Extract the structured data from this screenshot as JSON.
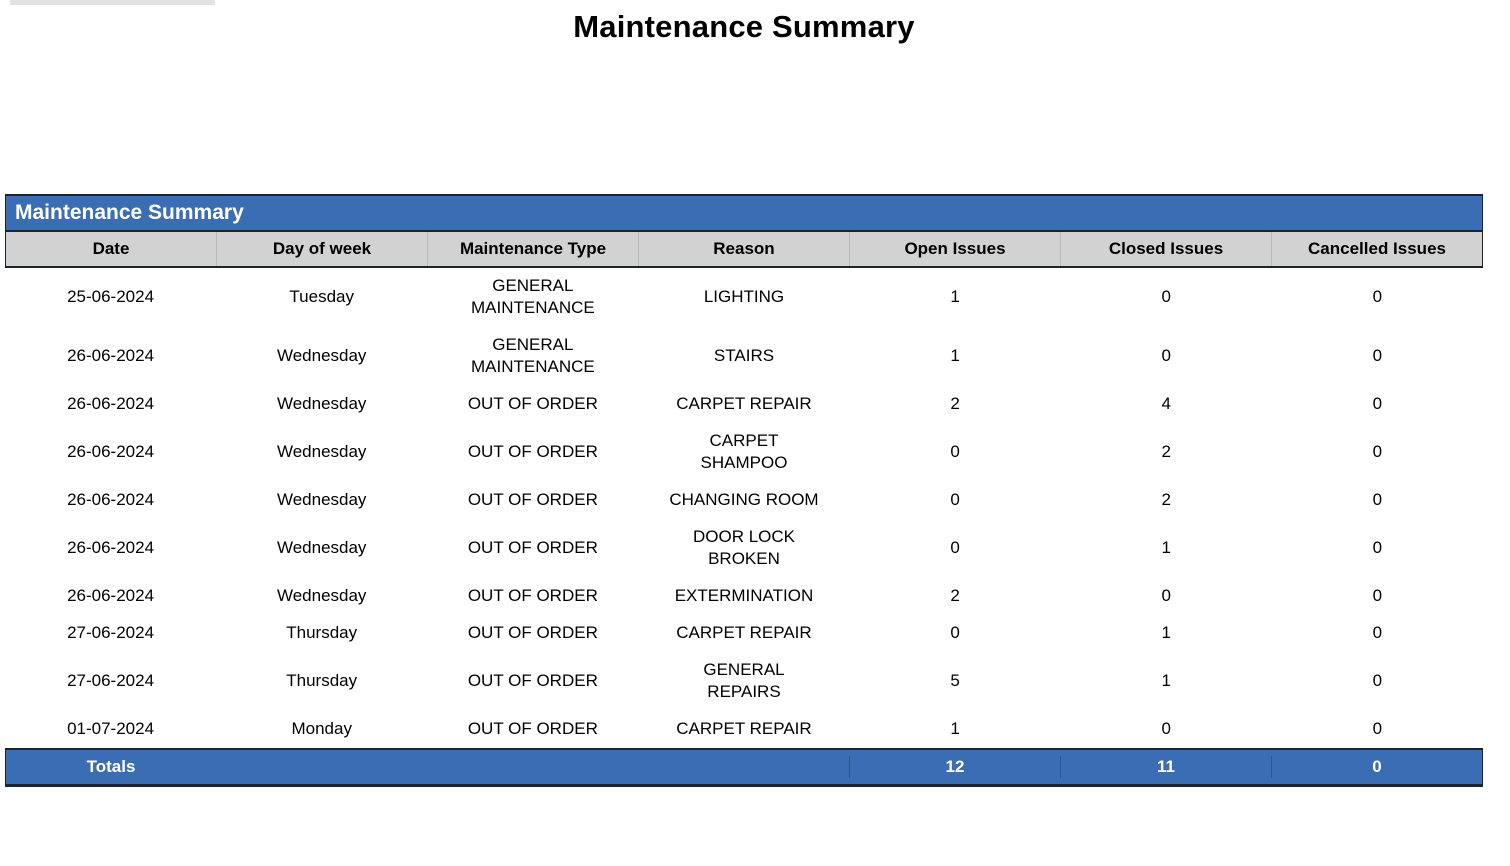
{
  "page": {
    "title": "Maintenance Summary"
  },
  "colors": {
    "accent_blue": "#3a6db4",
    "header_gray": "#d2d2d2",
    "border_dark": "#1c2430",
    "top_strip_gray": "#e2e2e2"
  },
  "table": {
    "title": "Maintenance Summary",
    "columns": [
      "Date",
      "Day of week",
      "Maintenance Type",
      "Reason",
      "Open Issues",
      "Closed Issues",
      "Cancelled Issues"
    ],
    "rows": [
      {
        "date": "25-06-2024",
        "day": "Tuesday",
        "type": "GENERAL\nMAINTENANCE",
        "reason": "LIGHTING",
        "open": "1",
        "closed": "0",
        "cancelled": "0"
      },
      {
        "date": "26-06-2024",
        "day": "Wednesday",
        "type": "GENERAL\nMAINTENANCE",
        "reason": "STAIRS",
        "open": "1",
        "closed": "0",
        "cancelled": "0"
      },
      {
        "date": "26-06-2024",
        "day": "Wednesday",
        "type": "OUT OF ORDER",
        "reason": "CARPET REPAIR",
        "open": "2",
        "closed": "4",
        "cancelled": "0"
      },
      {
        "date": "26-06-2024",
        "day": "Wednesday",
        "type": "OUT OF ORDER",
        "reason": "CARPET\nSHAMPOO",
        "open": "0",
        "closed": "2",
        "cancelled": "0"
      },
      {
        "date": "26-06-2024",
        "day": "Wednesday",
        "type": "OUT OF ORDER",
        "reason": "CHANGING ROOM",
        "open": "0",
        "closed": "2",
        "cancelled": "0"
      },
      {
        "date": "26-06-2024",
        "day": "Wednesday",
        "type": "OUT OF ORDER",
        "reason": "DOOR LOCK\nBROKEN",
        "open": "0",
        "closed": "1",
        "cancelled": "0"
      },
      {
        "date": "26-06-2024",
        "day": "Wednesday",
        "type": "OUT OF ORDER",
        "reason": "EXTERMINATION",
        "open": "2",
        "closed": "0",
        "cancelled": "0"
      },
      {
        "date": "27-06-2024",
        "day": "Thursday",
        "type": "OUT OF ORDER",
        "reason": "CARPET REPAIR",
        "open": "0",
        "closed": "1",
        "cancelled": "0"
      },
      {
        "date": "27-06-2024",
        "day": "Thursday",
        "type": "OUT OF ORDER",
        "reason": "GENERAL\nREPAIRS",
        "open": "5",
        "closed": "1",
        "cancelled": "0"
      },
      {
        "date": "01-07-2024",
        "day": "Monday",
        "type": "OUT OF ORDER",
        "reason": "CARPET REPAIR",
        "open": "1",
        "closed": "0",
        "cancelled": "0"
      }
    ],
    "totals": {
      "label": "Totals",
      "open": "12",
      "closed": "11",
      "cancelled": "0"
    }
  }
}
